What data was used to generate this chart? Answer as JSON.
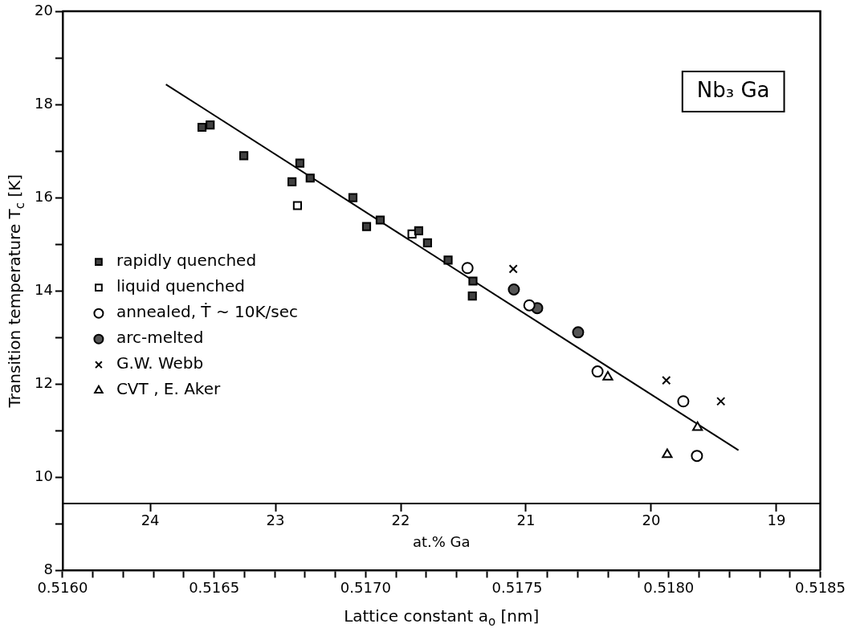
{
  "chart_data": {
    "type": "scatter",
    "title": "Nb₃ Ga",
    "xlabel": "Lattice constant a$_{o}$ [nm]",
    "ylabel": "Transition temperature T$_{c}$ [K]",
    "x2label": "at.% Ga",
    "xlim": [
      0.516,
      0.5185
    ],
    "ylim": [
      8,
      20
    ],
    "xticks": [
      {
        "value": 0.516,
        "label": "0.5160"
      },
      {
        "value": 0.5161,
        "label": null
      },
      {
        "value": 0.5162,
        "label": null
      },
      {
        "value": 0.5163,
        "label": null
      },
      {
        "value": 0.5164,
        "label": null
      },
      {
        "value": 0.5165,
        "label": "0.5165"
      },
      {
        "value": 0.5166,
        "label": null
      },
      {
        "value": 0.5167,
        "label": null
      },
      {
        "value": 0.5168,
        "label": null
      },
      {
        "value": 0.5169,
        "label": null
      },
      {
        "value": 0.517,
        "label": "0.5170"
      },
      {
        "value": 0.5171,
        "label": null
      },
      {
        "value": 0.5172,
        "label": null
      },
      {
        "value": 0.5173,
        "label": null
      },
      {
        "value": 0.5174,
        "label": null
      },
      {
        "value": 0.5175,
        "label": "0.5175"
      },
      {
        "value": 0.5176,
        "label": null
      },
      {
        "value": 0.5177,
        "label": null
      },
      {
        "value": 0.5178,
        "label": null
      },
      {
        "value": 0.5179,
        "label": null
      },
      {
        "value": 0.518,
        "label": "0.5180"
      },
      {
        "value": 0.5181,
        "label": null
      },
      {
        "value": 0.5182,
        "label": null
      },
      {
        "value": 0.5183,
        "label": null
      },
      {
        "value": 0.5184,
        "label": null
      },
      {
        "value": 0.5185,
        "label": "0.5185"
      }
    ],
    "yticks": [
      8,
      {
        "value": 9,
        "label": null
      },
      10,
      {
        "value": 11,
        "label": null
      },
      12,
      {
        "value": 13,
        "label": null
      },
      14,
      {
        "value": 15,
        "label": null
      },
      16,
      {
        "value": 17,
        "label": null
      },
      18,
      {
        "value": 19,
        "label": null
      },
      20
    ],
    "x2lim": [
      24.7,
      18.65
    ],
    "x2ticks": [
      24,
      23,
      22,
      21,
      20,
      19
    ],
    "grid": false,
    "legend": "left",
    "series": [
      {
        "name": "rapidly quenched",
        "type": "scatter",
        "marker": "square",
        "color": "#404040",
        "x": [
          0.51646,
          0.516487,
          0.516598,
          0.516783,
          0.516757,
          0.516817,
          0.516958,
          0.517003,
          0.517048,
          0.517175,
          0.517204,
          0.517272,
          0.517354,
          0.517352
        ],
        "values": [
          17.51,
          17.56,
          16.9,
          16.74,
          16.34,
          16.42,
          16.0,
          15.38,
          15.52,
          15.29,
          15.03,
          14.66,
          14.21,
          13.89
        ]
      },
      {
        "name": "liquid quenched",
        "type": "scatter",
        "marker": "square",
        "color": "#ffffff",
        "x": [
          0.516775,
          0.517153
        ],
        "values": [
          15.83,
          15.22
        ]
      },
      {
        "name": "annealed, Ṫ ~ 10K/sec",
        "type": "scatter",
        "marker": "circle",
        "color": "#ffffff",
        "x": [
          0.517336,
          0.51754,
          0.517765,
          0.518048,
          0.518093
        ],
        "values": [
          14.49,
          13.69,
          12.27,
          11.63,
          10.46
        ]
      },
      {
        "name": "arc-melted",
        "type": "scatter",
        "marker": "circle",
        "color": "#555555",
        "x": [
          0.517489,
          0.517566,
          0.517701
        ],
        "values": [
          14.03,
          13.63,
          13.11
        ]
      },
      {
        "name": "G.W. Webb",
        "type": "scatter",
        "marker": "cross",
        "color": "#000000",
        "x": [
          0.517487,
          0.517992,
          0.518172
        ],
        "values": [
          14.47,
          12.08,
          11.63
        ]
      },
      {
        "name": "CVT , E. Aker",
        "type": "scatter",
        "marker": "triangle",
        "color": "#ffffff",
        "x": [
          0.517799,
          0.518095,
          0.517995
        ],
        "values": [
          12.15,
          11.07,
          10.49
        ]
      },
      {
        "type": "line",
        "marker": "none",
        "line_style": "solid",
        "color": "#000000",
        "x": [
          0.516341,
          0.51823
        ],
        "values": [
          18.43,
          10.58
        ]
      }
    ]
  }
}
